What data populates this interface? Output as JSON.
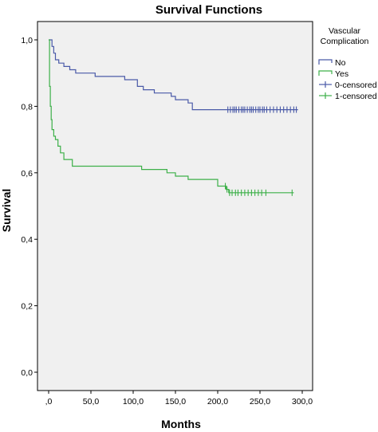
{
  "chart_data": {
    "type": "line",
    "title": "Survival Functions",
    "xlabel": "Months",
    "ylabel": "Survival",
    "xlim": [
      0,
      300
    ],
    "ylim": [
      0,
      1
    ],
    "x_ticks": [
      0,
      50,
      100,
      150,
      200,
      250,
      300
    ],
    "x_tick_labels": [
      ",0",
      "50,0",
      "100,0",
      "150,0",
      "200,0",
      "250,0",
      "300,0"
    ],
    "y_ticks": [
      0,
      0.2,
      0.4,
      0.6,
      0.8,
      1.0
    ],
    "y_tick_labels": [
      "0,0",
      "0,2",
      "0,4",
      "0,6",
      "0,8",
      "1,0"
    ],
    "grid": false,
    "legend": {
      "title_lines": [
        "Vascular",
        "Complication"
      ],
      "placement": "right",
      "entries": [
        {
          "label": "No",
          "kind": "step",
          "series": 0
        },
        {
          "label": "Yes",
          "kind": "step",
          "series": 1
        },
        {
          "label": "0-censored",
          "kind": "censor",
          "series": 0
        },
        {
          "label": "1-censored",
          "kind": "censor",
          "series": 1
        }
      ]
    },
    "series": [
      {
        "name": "No",
        "color": "#4a5aa8",
        "steps": [
          [
            0,
            1.0
          ],
          [
            4,
            0.98
          ],
          [
            6,
            0.96
          ],
          [
            8,
            0.94
          ],
          [
            12,
            0.93
          ],
          [
            18,
            0.92
          ],
          [
            25,
            0.91
          ],
          [
            32,
            0.9
          ],
          [
            55,
            0.89
          ],
          [
            90,
            0.88
          ],
          [
            105,
            0.86
          ],
          [
            112,
            0.85
          ],
          [
            125,
            0.84
          ],
          [
            145,
            0.83
          ],
          [
            150,
            0.82
          ],
          [
            165,
            0.81
          ],
          [
            170,
            0.79
          ],
          [
            210,
            0.79
          ],
          [
            295,
            0.79
          ]
        ],
        "censored": [
          212,
          215,
          218,
          220,
          222,
          225,
          228,
          230,
          232,
          235,
          238,
          240,
          242,
          245,
          248,
          250,
          253,
          255,
          258,
          262,
          266,
          270,
          274,
          278,
          282,
          286,
          290,
          293
        ]
      },
      {
        "name": "Yes",
        "color": "#3db049",
        "steps": [
          [
            0,
            1.0
          ],
          [
            1,
            0.86
          ],
          [
            2,
            0.8
          ],
          [
            3,
            0.76
          ],
          [
            4,
            0.73
          ],
          [
            6,
            0.71
          ],
          [
            8,
            0.7
          ],
          [
            11,
            0.68
          ],
          [
            14,
            0.66
          ],
          [
            18,
            0.64
          ],
          [
            28,
            0.62
          ],
          [
            110,
            0.61
          ],
          [
            140,
            0.6
          ],
          [
            150,
            0.59
          ],
          [
            165,
            0.58
          ],
          [
            200,
            0.56
          ],
          [
            210,
            0.55
          ],
          [
            213,
            0.54
          ],
          [
            290,
            0.54
          ]
        ],
        "censored": [
          209,
          211,
          214,
          217,
          221,
          224,
          228,
          232,
          236,
          240,
          244,
          248,
          252,
          257,
          288
        ]
      }
    ]
  }
}
